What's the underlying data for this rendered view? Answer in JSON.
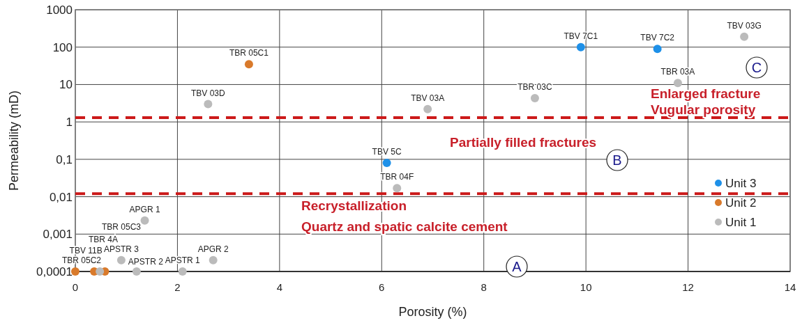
{
  "chart_data": {
    "type": "scatter",
    "xlabel": "Porosity (%)",
    "ylabel": "Permeability (mD)",
    "log": "y",
    "grid": true,
    "legend": "right",
    "marker": "circle",
    "xlim": [
      0,
      14
    ],
    "xticks": [
      0,
      2,
      4,
      6,
      8,
      10,
      12,
      14
    ],
    "ylim": [
      0.0001,
      1000
    ],
    "yticks": [
      {
        "value": 0.0001,
        "label": "0,0001"
      },
      {
        "value": 0.001,
        "label": "0,001"
      },
      {
        "value": 0.01,
        "label": "0,01"
      },
      {
        "value": 0.1,
        "label": "0,1"
      },
      1,
      10,
      100,
      1000
    ],
    "series": [
      {
        "name": "Unit 3",
        "color": "#1e90e8",
        "x": [
          9.9,
          11.4,
          6.1
        ],
        "values": [
          100,
          90,
          0.08
        ]
      },
      {
        "name": "Unit 2",
        "color": "#d97a2b",
        "x": [
          3.4,
          0,
          0.37,
          0.58
        ],
        "values": [
          35,
          0.0001,
          0.0001,
          0.0001
        ]
      },
      {
        "name": "Unit 1",
        "color": "#bbbbbb",
        "x": [
          2.6,
          6.9,
          9.0,
          11.8,
          13.1,
          6.3,
          1.36,
          2.7,
          0.9,
          1.2,
          2.1,
          0.48
        ],
        "values": [
          3,
          2.2,
          4.3,
          11,
          190,
          0.017,
          0.0023,
          0.0002,
          0.0002,
          0.0001,
          0.0001,
          0.0001
        ]
      }
    ],
    "ref_lines": [
      {
        "axis": "y",
        "value": 1.3,
        "color": "#cc1a1a",
        "line_style": "dashed"
      },
      {
        "axis": "y",
        "value": 0.012,
        "color": "#cc1a1a",
        "line_style": "dashed"
      }
    ],
    "annotations": [
      {
        "text": "TBR 05C2",
        "x": 0,
        "y": 0.0001
      },
      {
        "text": "TBV 11B",
        "x": 0.48,
        "y": 0.0001
      },
      {
        "text": "TBV 7C1",
        "x": 9.9,
        "y": 100
      },
      {
        "text": "TBV 7C2",
        "x": 11.4,
        "y": 90
      },
      {
        "text": "TBV 5C",
        "x": 6.1,
        "y": 0.08
      },
      {
        "text": "TBR 05C1",
        "x": 3.4,
        "y": 35
      },
      {
        "text": "TBV 03D",
        "x": 2.6,
        "y": 3
      },
      {
        "text": "TBV 03A",
        "x": 6.9,
        "y": 2.2
      },
      {
        "text": "TBR 03C",
        "x": 9.0,
        "y": 4.3
      },
      {
        "text": "TBR 03A",
        "x": 11.8,
        "y": 11
      },
      {
        "text": "TBV 03G",
        "x": 13.1,
        "y": 190
      },
      {
        "text": "TBR 04F",
        "x": 6.3,
        "y": 0.017
      },
      {
        "text": "APGR 1",
        "x": 1.36,
        "y": 0.0023
      },
      {
        "text": "APGR 2",
        "x": 2.7,
        "y": 0.0002
      },
      {
        "text": "APSTR 3",
        "x": 0.9,
        "y": 0.0002
      },
      {
        "text": "APSTR 2",
        "x": 1.2,
        "y": 0.0001
      },
      {
        "text": "APSTR 1",
        "x": 2.1,
        "y": 0.0001
      },
      "Partially filled fractures",
      "Enlarged fracture",
      "Vugular porosity",
      "Recrystallization",
      "Quartz and spatic calcite cement",
      "A",
      "B",
      "C",
      "TBR 05C3",
      "TBR 4A"
    ]
  }
}
